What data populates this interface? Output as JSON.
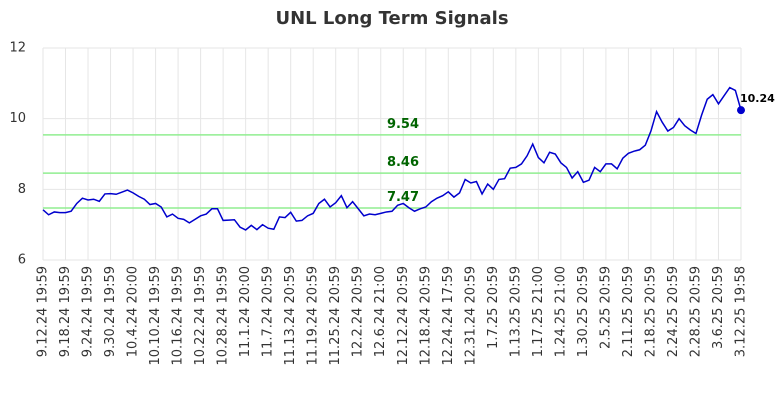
{
  "chart_data": {
    "type": "line",
    "title": "UNL Long Term Signals",
    "categories": [
      "9.12.24 19:59",
      null,
      null,
      null,
      "9.18.24 19:59",
      null,
      null,
      null,
      "9.24.24 19:59",
      null,
      null,
      null,
      "9.30.24 19:59",
      null,
      null,
      null,
      "10.4.24 20:00",
      null,
      null,
      null,
      "10.10.24 19:59",
      null,
      null,
      null,
      "10.16.24 19:59",
      null,
      null,
      null,
      "10.22.24 19:59",
      null,
      null,
      null,
      "10.28.24 19:59",
      null,
      null,
      null,
      "11.1.24 20:00",
      null,
      null,
      null,
      "11.7.24 20:59",
      null,
      null,
      null,
      "11.13.24 20:59",
      null,
      null,
      null,
      "11.19.24 20:59",
      null,
      null,
      null,
      "11.25.24 20:59",
      null,
      null,
      null,
      "12.2.24 20:59",
      null,
      null,
      null,
      "12.6.24 21:00",
      null,
      null,
      null,
      "12.12.24 20:59",
      null,
      null,
      null,
      "12.18.24 20:59",
      null,
      null,
      null,
      "12.24.24 17:59",
      null,
      null,
      null,
      "12.31.24 20:59",
      null,
      null,
      null,
      "1.7.25 20:59",
      null,
      null,
      null,
      "1.13.25 20:59",
      null,
      null,
      null,
      "1.17.25 21:00",
      null,
      null,
      null,
      "1.24.25 21:00",
      null,
      null,
      null,
      "1.30.25 20:59",
      null,
      null,
      null,
      "2.5.25 20:59",
      null,
      null,
      null,
      "2.11.25 20:59",
      null,
      null,
      null,
      "2.18.25 20:59",
      null,
      null,
      null,
      "2.24.25 20:59",
      null,
      null,
      null,
      "2.28.25 20:59",
      null,
      null,
      null,
      "3.6.25 20:59",
      null,
      null,
      null,
      "3.12.25 19:58"
    ],
    "series": [
      {
        "color": "#0000cd",
        "values": [
          7.42,
          7.28,
          7.36,
          7.34,
          7.34,
          7.38,
          7.6,
          7.75,
          7.7,
          7.72,
          7.66,
          7.87,
          7.88,
          7.86,
          7.92,
          7.98,
          7.9,
          7.8,
          7.72,
          7.57,
          7.6,
          7.5,
          7.22,
          7.3,
          7.18,
          7.15,
          7.05,
          7.15,
          7.25,
          7.3,
          7.45,
          7.45,
          7.12,
          7.13,
          7.14,
          6.93,
          6.85,
          6.98,
          6.86,
          7.0,
          6.9,
          6.87,
          7.22,
          7.2,
          7.35,
          7.1,
          7.12,
          7.25,
          7.32,
          7.6,
          7.72,
          7.5,
          7.62,
          7.82,
          7.48,
          7.65,
          7.45,
          7.25,
          7.3,
          7.28,
          7.32,
          7.36,
          7.38,
          7.55,
          7.6,
          7.48,
          7.38,
          7.45,
          7.5,
          7.65,
          7.75,
          7.82,
          7.93,
          7.78,
          7.9,
          8.28,
          8.18,
          8.22,
          7.87,
          8.15,
          8.0,
          8.28,
          8.3,
          8.6,
          8.62,
          8.72,
          8.95,
          9.28,
          8.9,
          8.75,
          9.05,
          9.0,
          8.75,
          8.62,
          8.32,
          8.5,
          8.2,
          8.26,
          8.62,
          8.5,
          8.72,
          8.72,
          8.58,
          8.88,
          9.02,
          9.08,
          9.12,
          9.25,
          9.65,
          10.2,
          9.9,
          9.65,
          9.75,
          10.0,
          9.8,
          9.68,
          9.58,
          10.1,
          10.55,
          10.68,
          10.42,
          10.65,
          10.88,
          10.8,
          10.24
        ]
      }
    ],
    "signal_lines": [
      9.54,
      8.46,
      7.47
    ],
    "signal_color": "#90ee90",
    "ylim": [
      6,
      12
    ],
    "yticks": [
      6,
      8,
      10,
      12
    ],
    "grid": true
  }
}
